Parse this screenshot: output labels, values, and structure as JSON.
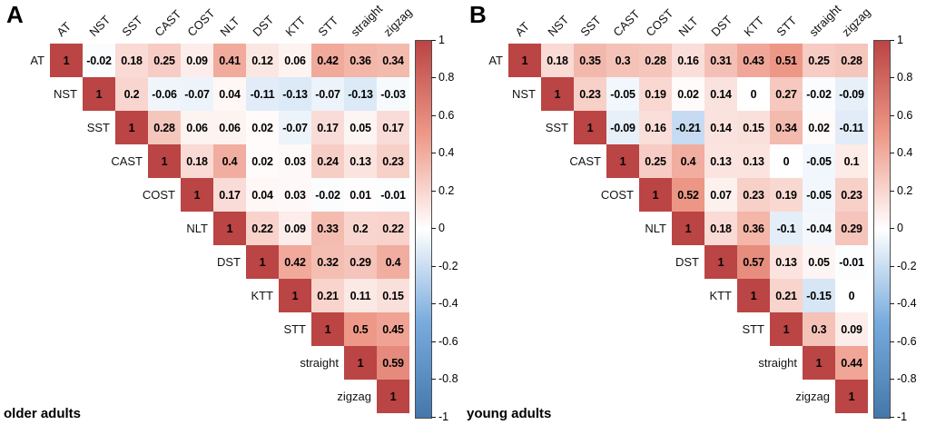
{
  "figure": {
    "background": "#ffffff",
    "text_color": "#000000"
  },
  "chart_data": [
    {
      "type": "heatmap",
      "panel_label": "A",
      "title": "older adults",
      "categories": [
        "AT",
        "NST",
        "SST",
        "CAST",
        "COST",
        "NLT",
        "DST",
        "KTT",
        "STT",
        "straight",
        "zigzag"
      ],
      "matrix_upper_triangle": [
        [
          1,
          -0.02,
          0.18,
          0.25,
          0.09,
          0.41,
          0.12,
          0.06,
          0.42,
          0.36,
          0.34
        ],
        [
          1,
          0.2,
          -0.06,
          -0.07,
          0.04,
          -0.11,
          -0.13,
          -0.07,
          -0.13,
          -0.03
        ],
        [
          1,
          0.28,
          0.06,
          0.06,
          0.02,
          -0.07,
          0.17,
          0.05,
          0.17
        ],
        [
          1,
          0.18,
          0.4,
          0.02,
          0.03,
          0.24,
          0.13,
          0.23
        ],
        [
          1,
          0.17,
          0.04,
          0.03,
          -0.02,
          0.01,
          -0.01
        ],
        [
          1,
          0.22,
          0.09,
          0.33,
          0.2,
          0.22
        ],
        [
          1,
          0.42,
          0.32,
          0.29,
          0.4
        ],
        [
          1,
          0.21,
          0.11,
          0.15
        ],
        [
          1,
          0.5,
          0.45
        ],
        [
          1,
          0.59
        ],
        [
          1
        ]
      ],
      "value_range": [
        -1,
        1
      ],
      "colorbar_ticks": [
        1,
        0.8,
        0.6,
        0.4,
        0.2,
        0,
        -0.2,
        -0.4,
        -0.6,
        -0.8,
        -1
      ],
      "legend_position": "right",
      "grid": false,
      "colorscale": [
        {
          "value": -1,
          "color": "#4477AA"
        },
        {
          "value": -0.5,
          "color": "#77AADD"
        },
        {
          "value": 0,
          "color": "#FFFFFF"
        },
        {
          "value": 0.5,
          "color": "#EE9988"
        },
        {
          "value": 1,
          "color": "#BB4444"
        }
      ]
    },
    {
      "type": "heatmap",
      "panel_label": "B",
      "title": "young adults",
      "categories": [
        "AT",
        "NST",
        "SST",
        "CAST",
        "COST",
        "NLT",
        "DST",
        "KTT",
        "STT",
        "straight",
        "zigzag"
      ],
      "matrix_upper_triangle": [
        [
          1,
          0.18,
          0.35,
          0.3,
          0.28,
          0.16,
          0.31,
          0.43,
          0.51,
          0.25,
          0.28
        ],
        [
          1,
          0.23,
          -0.05,
          0.19,
          0.02,
          0.14,
          0,
          0.27,
          -0.02,
          -0.09
        ],
        [
          1,
          -0.09,
          0.16,
          -0.21,
          0.14,
          0.15,
          0.34,
          0.02,
          -0.11
        ],
        [
          1,
          0.25,
          0.4,
          0.13,
          0.13,
          0,
          -0.05,
          0.1
        ],
        [
          1,
          0.52,
          0.07,
          0.23,
          0.19,
          -0.05,
          0.23
        ],
        [
          1,
          0.18,
          0.36,
          -0.1,
          -0.04,
          0.29
        ],
        [
          1,
          0.57,
          0.13,
          0.05,
          -0.01
        ],
        [
          1,
          0.21,
          -0.15,
          0
        ],
        [
          1,
          0.3,
          0.09
        ],
        [
          1,
          0.44
        ],
        [
          1
        ]
      ],
      "value_range": [
        -1,
        1
      ],
      "colorbar_ticks": [
        1,
        0.8,
        0.6,
        0.4,
        0.2,
        0,
        -0.2,
        -0.4,
        -0.6,
        -0.8,
        -1
      ],
      "legend_position": "right",
      "grid": false,
      "colorscale": [
        {
          "value": -1,
          "color": "#4477AA"
        },
        {
          "value": -0.5,
          "color": "#77AADD"
        },
        {
          "value": 0,
          "color": "#FFFFFF"
        },
        {
          "value": 0.5,
          "color": "#EE9988"
        },
        {
          "value": 1,
          "color": "#BB4444"
        }
      ]
    }
  ]
}
